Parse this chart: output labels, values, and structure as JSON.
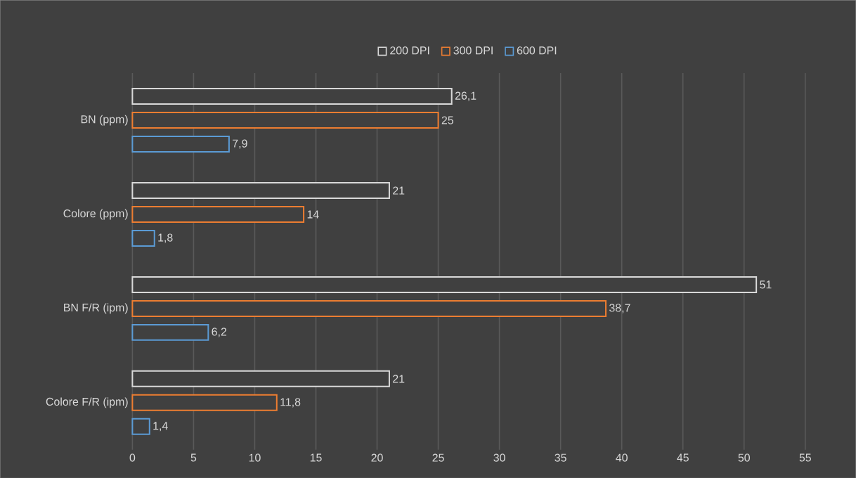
{
  "chart_data": {
    "type": "bar",
    "orientation": "horizontal",
    "categories": [
      "BN (ppm)",
      "Colore (ppm)",
      "BN F/R (ipm)",
      "Colore F/R (ipm)"
    ],
    "series": [
      {
        "name": "200 DPI",
        "color": "#d9d9d9",
        "values": [
          26.1,
          21,
          51,
          21
        ],
        "value_labels": [
          "26,1",
          "21",
          "51",
          "21"
        ]
      },
      {
        "name": "300 DPI",
        "color": "#ed7d31",
        "values": [
          25,
          14,
          38.7,
          11.8
        ],
        "value_labels": [
          "25",
          "14",
          "38,7",
          "11,8"
        ]
      },
      {
        "name": "600 DPI",
        "color": "#5b9bd5",
        "values": [
          7.9,
          1.8,
          6.2,
          1.4
        ],
        "value_labels": [
          "7,9",
          "1,8",
          "6,2",
          "1,4"
        ]
      }
    ],
    "xlim": [
      0,
      55
    ],
    "xticks": [
      0,
      5,
      10,
      15,
      20,
      25,
      30,
      35,
      40,
      45,
      50,
      55
    ],
    "grid": "x",
    "legend": "top"
  }
}
